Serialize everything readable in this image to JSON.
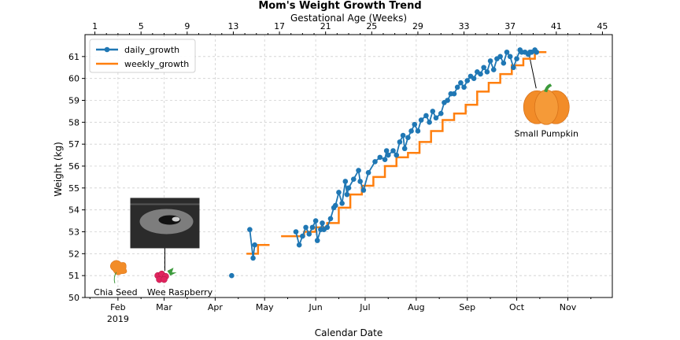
{
  "chart_data": {
    "type": "line",
    "title": "Mom's Weight Growth Trend",
    "xlabel": "Calendar Date",
    "ylabel": "Weight (kg)",
    "top_xlabel": "Gestational Age (Weeks)",
    "ylim": [
      50,
      62
    ],
    "yticks": [
      50,
      51,
      52,
      53,
      54,
      55,
      56,
      57,
      58,
      59,
      60,
      61
    ],
    "xlim": [
      "2019-01-12",
      "2019-11-28"
    ],
    "month_ticks": [
      {
        "date": "2019-02-01",
        "label": "Feb",
        "sublabel": "2019"
      },
      {
        "date": "2019-03-01",
        "label": "Mar"
      },
      {
        "date": "2019-04-01",
        "label": "Apr"
      },
      {
        "date": "2019-05-01",
        "label": "May"
      },
      {
        "date": "2019-06-01",
        "label": "Jun"
      },
      {
        "date": "2019-07-01",
        "label": "Jul"
      },
      {
        "date": "2019-08-01",
        "label": "Aug"
      },
      {
        "date": "2019-09-01",
        "label": "Sep"
      },
      {
        "date": "2019-10-01",
        "label": "Oct"
      },
      {
        "date": "2019-11-01",
        "label": "Nov"
      }
    ],
    "top_axis": {
      "week1_date": "2019-01-18",
      "ticks": [
        1,
        5,
        9,
        13,
        17,
        21,
        25,
        29,
        33,
        37,
        41,
        45
      ]
    },
    "grid": true,
    "legend": "upper-left",
    "colors": {
      "daily": "#1f77b4",
      "weekly": "#ff7f0e",
      "pumpkin": "#f28c28",
      "leaf": "#3c9a3c"
    },
    "series": [
      {
        "name": "daily_growth",
        "marker": "circle",
        "x": [
          "2019-04-11",
          "2019-04-22",
          "2019-04-24",
          "2019-04-25",
          "2019-05-20",
          "2019-05-22",
          "2019-05-24",
          "2019-05-26",
          "2019-05-28",
          "2019-05-30",
          "2019-06-01",
          "2019-06-02",
          "2019-06-04",
          "2019-06-05",
          "2019-06-06",
          "2019-06-08",
          "2019-06-10",
          "2019-06-12",
          "2019-06-13",
          "2019-06-15",
          "2019-06-17",
          "2019-06-19",
          "2019-06-20",
          "2019-06-21",
          "2019-06-24",
          "2019-06-27",
          "2019-06-28",
          "2019-06-30",
          "2019-07-03",
          "2019-07-07",
          "2019-07-10",
          "2019-07-13",
          "2019-07-14",
          "2019-07-15",
          "2019-07-18",
          "2019-07-20",
          "2019-07-22",
          "2019-07-24",
          "2019-07-25",
          "2019-07-27",
          "2019-07-29",
          "2019-07-31",
          "2019-08-02",
          "2019-08-04",
          "2019-08-07",
          "2019-08-09",
          "2019-08-11",
          "2019-08-13",
          "2019-08-16",
          "2019-08-18",
          "2019-08-20",
          "2019-08-22",
          "2019-08-24",
          "2019-08-26",
          "2019-08-28",
          "2019-08-30",
          "2019-09-01",
          "2019-09-03",
          "2019-09-05",
          "2019-09-07",
          "2019-09-09",
          "2019-09-11",
          "2019-09-13",
          "2019-09-15",
          "2019-09-17",
          "2019-09-19",
          "2019-09-21",
          "2019-09-23",
          "2019-09-25",
          "2019-09-27",
          "2019-09-29",
          "2019-10-01",
          "2019-10-03",
          "2019-10-04",
          "2019-10-06",
          "2019-10-08",
          "2019-10-09",
          "2019-10-10",
          "2019-10-12",
          "2019-10-13"
        ],
        "values": [
          51.0,
          53.1,
          51.8,
          52.4,
          53.0,
          52.4,
          52.8,
          53.2,
          52.9,
          53.2,
          53.5,
          52.6,
          53.1,
          53.4,
          53.1,
          53.2,
          53.6,
          54.1,
          54.2,
          54.8,
          54.3,
          55.3,
          54.7,
          55.0,
          55.4,
          55.8,
          55.3,
          54.9,
          55.7,
          56.2,
          56.4,
          56.3,
          56.7,
          56.5,
          56.7,
          56.5,
          57.1,
          57.4,
          56.8,
          57.3,
          57.6,
          57.9,
          57.6,
          58.1,
          58.3,
          58.0,
          58.5,
          58.2,
          58.4,
          58.9,
          59.0,
          59.3,
          59.3,
          59.6,
          59.8,
          59.6,
          59.9,
          60.1,
          60.0,
          60.3,
          60.2,
          60.5,
          60.3,
          60.8,
          60.4,
          60.9,
          61.0,
          60.7,
          61.2,
          61.0,
          60.5,
          60.9,
          61.3,
          61.2,
          61.2,
          61.1,
          61.2,
          61.2,
          61.3,
          61.2
        ]
      },
      {
        "name": "weekly_growth",
        "step": true,
        "x": [
          "2019-04-20",
          "2019-04-27",
          "2019-05-04",
          "2019-05-11",
          "2019-05-18",
          "2019-05-25",
          "2019-06-01",
          "2019-06-08",
          "2019-06-15",
          "2019-06-22",
          "2019-06-29",
          "2019-07-06",
          "2019-07-13",
          "2019-07-20",
          "2019-07-27",
          "2019-08-03",
          "2019-08-10",
          "2019-08-17",
          "2019-08-24",
          "2019-08-31",
          "2019-09-07",
          "2019-09-14",
          "2019-09-21",
          "2019-09-28",
          "2019-10-05",
          "2019-10-12"
        ],
        "values": [
          52.0,
          52.4,
          null,
          52.8,
          52.8,
          53.0,
          53.2,
          53.4,
          54.1,
          54.7,
          55.1,
          55.5,
          56.0,
          56.4,
          56.6,
          57.1,
          57.6,
          58.1,
          58.4,
          58.8,
          59.4,
          59.8,
          60.2,
          60.6,
          60.9,
          61.2
        ]
      }
    ],
    "annotations": [
      {
        "label": "Chia Seed",
        "date": "2019-02-01",
        "value": 51.3,
        "kind": "seed"
      },
      {
        "label": "Wee Raspberry",
        "date": "2019-03-01",
        "value": 51.0,
        "kind": "raspberry"
      },
      {
        "label": "",
        "date": "2019-03-01",
        "value": 53.9,
        "kind": "ultrasound"
      },
      {
        "label": "Small Pumpkin",
        "date": "2019-10-19",
        "value": 58.9,
        "kind": "pumpkin"
      }
    ]
  }
}
